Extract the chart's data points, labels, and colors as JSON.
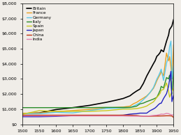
{
  "title": "",
  "xlabel": "",
  "ylabel": "",
  "xlim": [
    1500,
    1950
  ],
  "ylim": [
    0,
    8000
  ],
  "yticks": [
    0,
    1000,
    2000,
    3000,
    4000,
    5000,
    6000,
    7000,
    8000
  ],
  "xticks": [
    1500,
    1550,
    1600,
    1650,
    1700,
    1750,
    1800,
    1850,
    1900,
    1950
  ],
  "bg_color": "#f0ede8",
  "series": {
    "Britain": {
      "color": "#000000",
      "lw": 1.2,
      "data": [
        [
          1500,
          714
        ],
        [
          1550,
          750
        ],
        [
          1600,
          974
        ],
        [
          1650,
          1100
        ],
        [
          1700,
          1250
        ],
        [
          1750,
          1454
        ],
        [
          1780,
          1600
        ],
        [
          1800,
          1706
        ],
        [
          1820,
          1880
        ],
        [
          1830,
          2050
        ],
        [
          1840,
          2200
        ],
        [
          1850,
          2330
        ],
        [
          1860,
          2700
        ],
        [
          1870,
          3190
        ],
        [
          1880,
          3600
        ],
        [
          1890,
          4009
        ],
        [
          1895,
          4200
        ],
        [
          1900,
          4492
        ],
        [
          1905,
          4600
        ],
        [
          1910,
          4750
        ],
        [
          1913,
          4921
        ],
        [
          1920,
          4800
        ],
        [
          1929,
          5503
        ],
        [
          1935,
          5900
        ],
        [
          1938,
          6266
        ],
        [
          1945,
          6500
        ],
        [
          1950,
          6939
        ]
      ]
    },
    "France": {
      "color": "#e8a020",
      "lw": 1.0,
      "data": [
        [
          1500,
          727
        ],
        [
          1550,
          750
        ],
        [
          1600,
          841
        ],
        [
          1650,
          910
        ],
        [
          1700,
          986
        ],
        [
          1750,
          1078
        ],
        [
          1800,
          1135
        ],
        [
          1820,
          1200
        ],
        [
          1830,
          1350
        ],
        [
          1840,
          1450
        ],
        [
          1850,
          1597
        ],
        [
          1860,
          1730
        ],
        [
          1870,
          1876
        ],
        [
          1880,
          2100
        ],
        [
          1890,
          2376
        ],
        [
          1895,
          2600
        ],
        [
          1900,
          2876
        ],
        [
          1905,
          3100
        ],
        [
          1910,
          3300
        ],
        [
          1913,
          3485
        ],
        [
          1920,
          3200
        ],
        [
          1929,
          4710
        ],
        [
          1935,
          4200
        ],
        [
          1938,
          4466
        ],
        [
          1942,
          3800
        ],
        [
          1945,
          3000
        ],
        [
          1950,
          5270
        ]
      ]
    },
    "Germany": {
      "color": "#5bc8e8",
      "lw": 1.0,
      "data": [
        [
          1500,
          688
        ],
        [
          1550,
          700
        ],
        [
          1600,
          791
        ],
        [
          1650,
          750
        ],
        [
          1700,
          910
        ],
        [
          1750,
          1050
        ],
        [
          1800,
          1077
        ],
        [
          1820,
          1100
        ],
        [
          1830,
          1200
        ],
        [
          1840,
          1300
        ],
        [
          1850,
          1428
        ],
        [
          1860,
          1630
        ],
        [
          1870,
          1839
        ],
        [
          1880,
          2100
        ],
        [
          1890,
          2428
        ],
        [
          1895,
          2700
        ],
        [
          1900,
          2985
        ],
        [
          1905,
          3200
        ],
        [
          1910,
          3450
        ],
        [
          1913,
          3648
        ],
        [
          1920,
          2900
        ],
        [
          1929,
          4051
        ],
        [
          1935,
          4500
        ],
        [
          1938,
          5126
        ],
        [
          1942,
          5500
        ],
        [
          1945,
          3000
        ],
        [
          1950,
          3881
        ]
      ]
    },
    "Italy": {
      "color": "#2a8c2a",
      "lw": 1.0,
      "data": [
        [
          1500,
          1100
        ],
        [
          1550,
          1100
        ],
        [
          1600,
          1100
        ],
        [
          1650,
          1100
        ],
        [
          1700,
          1100
        ],
        [
          1750,
          1117
        ],
        [
          1800,
          1117
        ],
        [
          1820,
          1117
        ],
        [
          1830,
          1150
        ],
        [
          1840,
          1200
        ],
        [
          1850,
          1350
        ],
        [
          1860,
          1400
        ],
        [
          1870,
          1499
        ],
        [
          1880,
          1580
        ],
        [
          1890,
          1667
        ],
        [
          1895,
          1720
        ],
        [
          1900,
          1785
        ],
        [
          1905,
          2000
        ],
        [
          1910,
          2250
        ],
        [
          1913,
          2507
        ],
        [
          1920,
          2400
        ],
        [
          1929,
          3093
        ],
        [
          1935,
          3000
        ],
        [
          1938,
          3244
        ],
        [
          1942,
          2800
        ],
        [
          1945,
          2000
        ],
        [
          1950,
          3502
        ]
      ]
    },
    "Spain": {
      "color": "#c8c820",
      "lw": 1.0,
      "data": [
        [
          1500,
          661
        ],
        [
          1550,
          900
        ],
        [
          1600,
          853
        ],
        [
          1650,
          853
        ],
        [
          1700,
          853
        ],
        [
          1750,
          900
        ],
        [
          1800,
          1008
        ],
        [
          1820,
          1008
        ],
        [
          1830,
          1020
        ],
        [
          1840,
          1040
        ],
        [
          1850,
          1079
        ],
        [
          1860,
          1130
        ],
        [
          1870,
          1207
        ],
        [
          1880,
          1350
        ],
        [
          1890,
          1481
        ],
        [
          1895,
          1620
        ],
        [
          1900,
          1786
        ],
        [
          1905,
          1900
        ],
        [
          1910,
          2050
        ],
        [
          1913,
          2255
        ],
        [
          1920,
          2300
        ],
        [
          1929,
          2739
        ],
        [
          1935,
          2200
        ],
        [
          1938,
          1790
        ],
        [
          1942,
          2000
        ],
        [
          1950,
          2397
        ]
      ]
    },
    "Japan": {
      "color": "#2020c0",
      "lw": 1.0,
      "data": [
        [
          1500,
          500
        ],
        [
          1550,
          500
        ],
        [
          1600,
          520
        ],
        [
          1650,
          570
        ],
        [
          1700,
          570
        ],
        [
          1750,
          570
        ],
        [
          1800,
          600
        ],
        [
          1820,
          669
        ],
        [
          1830,
          690
        ],
        [
          1840,
          700
        ],
        [
          1850,
          737
        ],
        [
          1860,
          737
        ],
        [
          1870,
          737
        ],
        [
          1880,
          900
        ],
        [
          1890,
          1012
        ],
        [
          1895,
          1080
        ],
        [
          1900,
          1180
        ],
        [
          1905,
          1300
        ],
        [
          1910,
          1387
        ],
        [
          1913,
          1387
        ],
        [
          1920,
          1700
        ],
        [
          1929,
          2026
        ],
        [
          1935,
          2500
        ],
        [
          1938,
          2953
        ],
        [
          1942,
          3500
        ],
        [
          1945,
          1500
        ],
        [
          1950,
          1921
        ]
      ]
    },
    "China": {
      "color": "#c03010",
      "lw": 1.0,
      "data": [
        [
          1500,
          600
        ],
        [
          1550,
          600
        ],
        [
          1600,
          600
        ],
        [
          1650,
          600
        ],
        [
          1700,
          600
        ],
        [
          1750,
          600
        ],
        [
          1800,
          600
        ],
        [
          1820,
          600
        ],
        [
          1830,
          590
        ],
        [
          1840,
          580
        ],
        [
          1850,
          550
        ],
        [
          1860,
          530
        ],
        [
          1870,
          530
        ],
        [
          1880,
          535
        ],
        [
          1890,
          540
        ],
        [
          1900,
          545
        ],
        [
          1910,
          550
        ],
        [
          1913,
          552
        ],
        [
          1920,
          555
        ],
        [
          1929,
          562
        ],
        [
          1935,
          562
        ],
        [
          1938,
          562
        ],
        [
          1945,
          550
        ],
        [
          1950,
          448
        ]
      ]
    },
    "India": {
      "color": "#e080b0",
      "lw": 1.0,
      "data": [
        [
          1500,
          550
        ],
        [
          1550,
          550
        ],
        [
          1600,
          550
        ],
        [
          1650,
          550
        ],
        [
          1700,
          550
        ],
        [
          1750,
          550
        ],
        [
          1800,
          550
        ],
        [
          1820,
          533
        ],
        [
          1830,
          533
        ],
        [
          1840,
          533
        ],
        [
          1850,
          533
        ],
        [
          1860,
          533
        ],
        [
          1870,
          533
        ],
        [
          1880,
          558
        ],
        [
          1890,
          584
        ],
        [
          1900,
          599
        ],
        [
          1910,
          650
        ],
        [
          1913,
          673
        ],
        [
          1920,
          660
        ],
        [
          1929,
          721
        ],
        [
          1935,
          700
        ],
        [
          1938,
          668
        ],
        [
          1945,
          620
        ],
        [
          1950,
          619
        ]
      ]
    }
  },
  "legend_order": [
    "Britain",
    "France",
    "Germany",
    "Italy",
    "Spain",
    "Japan",
    "China",
    "India"
  ]
}
